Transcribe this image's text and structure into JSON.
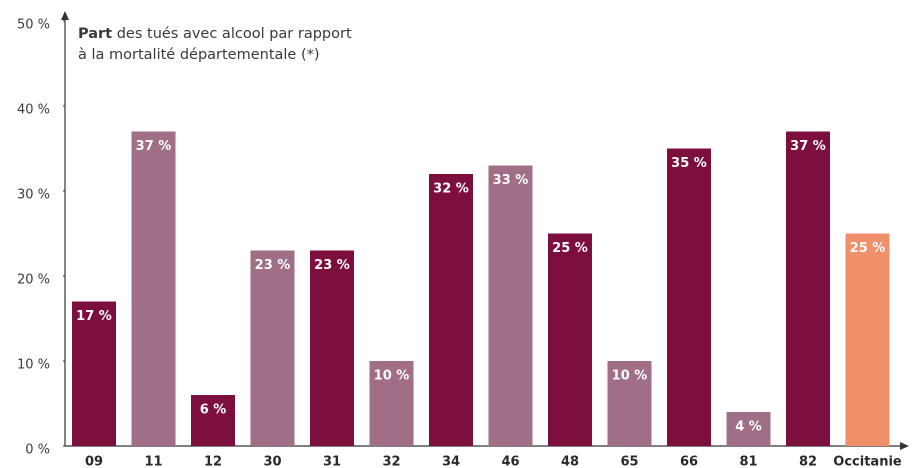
{
  "chart_data": {
    "type": "bar",
    "title_bold": "Part",
    "title_lines": [
      "des tués avec alcool par rapport",
      "à la mortalité départementale (*)"
    ],
    "categories": [
      "09",
      "11",
      "12",
      "30",
      "31",
      "32",
      "34",
      "46",
      "48",
      "65",
      "66",
      "81",
      "82",
      "Occitanie"
    ],
    "values": [
      17,
      37,
      6,
      23,
      23,
      10,
      32,
      33,
      25,
      10,
      35,
      4,
      37,
      25
    ],
    "value_labels": [
      "17 %",
      "37 %",
      "6 %",
      "23 %",
      "23 %",
      "10 %",
      "32 %",
      "33 %",
      "25 %",
      "10 %",
      "35 %",
      "4 %",
      "37 %",
      "25 %"
    ],
    "colors": [
      "#7d0f3f",
      "#a06e86",
      "#7d0f3f",
      "#a06e86",
      "#7d0f3f",
      "#a06e86",
      "#7d0f3f",
      "#a06e86",
      "#7d0f3f",
      "#a06e86",
      "#7d0f3f",
      "#a06e86",
      "#7d0f3f",
      "#f0906a"
    ],
    "ylim": [
      0,
      50
    ],
    "yticks": [
      {
        "value": 0,
        "label": "0 %"
      },
      {
        "value": 10,
        "label": "10 %"
      },
      {
        "value": 20,
        "label": "20 %"
      },
      {
        "value": 30,
        "label": "30 %"
      },
      {
        "value": 40,
        "label": "40 %"
      },
      {
        "value": 50,
        "label": "50 %"
      }
    ],
    "grid": false
  }
}
